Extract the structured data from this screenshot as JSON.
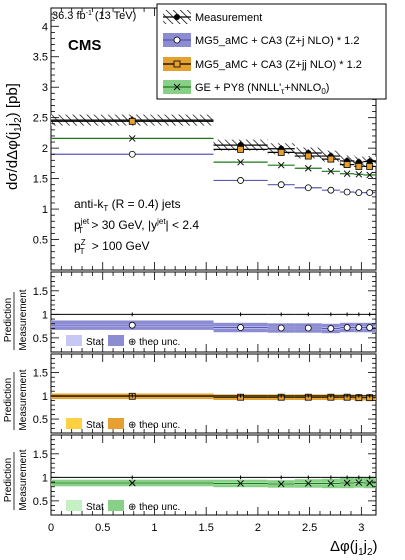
{
  "header": {
    "lumi": "36.3 fb",
    "lumi_sup": "-1",
    "energy": "(13 TeV)",
    "experiment": "CMS"
  },
  "top_panel": {
    "ylabel_main": "dσ/dΔφ(j",
    "ylabel_sub": "1",
    "ylabel_main2": "j",
    "ylabel_sub2": "2",
    "ylabel_unit": ") [pb]",
    "cut_line1_pre": "anti-k",
    "cut_line1_sub": "T",
    "cut_line1_post": " (R = 0.4) jets",
    "cut_line2": "p",
    "cut_line2_sup": "jet",
    "cut_line2_sub": "T",
    "cut_line2_post1": " > 30 GeV, |y",
    "cut_line2_sup2": "jet",
    "cut_line2_post2": "| < 2.4",
    "cut_line3": "p",
    "cut_line3_sup": "Z",
    "cut_line3_sub": "T",
    "cut_line3_post": " >  100 GeV"
  },
  "legend": {
    "measurement": "Measurement",
    "mg5_zj": "MG5_aMC + CA3 (Z+j NLO) * 1.2",
    "mg5_zjj": "MG5_aMC + CA3 (Z+jj NLO) * 1.2",
    "ge_py8": "GE + PY8 (NNLL'",
    "ge_py8_sub": "τ",
    "ge_py8_post": "+NNLO",
    "ge_py8_sub2": "0",
    "ge_py8_end": ")"
  },
  "ratio_panels": {
    "ylabel_top": "Prediction",
    "ylabel_bottom": "Measurement",
    "stat": "Stat",
    "theo": "⊕ theo unc."
  },
  "x_axis": {
    "label_main": "Δφ(j",
    "label_sub1": "1",
    "label_j": "j",
    "label_sub2": "2",
    "label_end": ")"
  },
  "colors": {
    "measurement": "#000000",
    "mg5_zj": "#5a5ab4",
    "mg5_zj_band": "#8c8cd2",
    "mg5_zj_stat": "#c8c8f5",
    "mg5_zjj": "#000000",
    "mg5_zjj_band": "#e6a030",
    "mg5_zjj_stat": "#ffd040",
    "ge_py8": "#1a7a1a",
    "ge_py8_band": "#88d088",
    "ge_py8_stat": "#c4f0c4"
  },
  "chart_data": {
    "type": "line",
    "x_edges": [
      0,
      1.5708,
      2.0944,
      2.3562,
      2.618,
      2.7925,
      2.9322,
      3.0194,
      3.1416
    ],
    "xlim": [
      0,
      3.1416
    ],
    "x_ticks": [
      "0",
      "0.5",
      "1",
      "1.5",
      "2",
      "2.5",
      "3"
    ],
    "top": {
      "ylim": [
        0,
        4.3
      ],
      "y_ticks": [
        "0.5",
        "1",
        "1.5",
        "2",
        "2.5",
        "3",
        "3.5",
        "4"
      ],
      "series": [
        {
          "name": "Measurement",
          "values": [
            2.46,
            2.05,
            1.99,
            1.92,
            1.87,
            1.79,
            1.77,
            1.78
          ],
          "unc": [
            0.09,
            0.09,
            0.09,
            0.09,
            0.09,
            0.09,
            0.09,
            0.09
          ]
        },
        {
          "name": "MG5_aMC + CA3 (Z+j NLO) * 1.2",
          "values": [
            1.9,
            1.47,
            1.4,
            1.35,
            1.31,
            1.28,
            1.27,
            1.27
          ]
        },
        {
          "name": "MG5_aMC + CA3 (Z+jj NLO) * 1.2",
          "values": [
            2.44,
            1.98,
            1.93,
            1.87,
            1.82,
            1.73,
            1.7,
            1.7
          ]
        },
        {
          "name": "GE + PY8 (NNLL'τ+NNLO0)",
          "values": [
            2.16,
            1.77,
            1.72,
            1.67,
            1.62,
            1.58,
            1.57,
            1.56
          ]
        }
      ]
    },
    "ratios": [
      {
        "series": "MG5_aMC + CA3 (Z+j NLO) * 1.2",
        "ylim": [
          0.2,
          1.9
        ],
        "y_ticks": [
          "0.5",
          "1",
          "1.5"
        ],
        "values": [
          0.77,
          0.72,
          0.71,
          0.71,
          0.7,
          0.72,
          0.72,
          0.72
        ],
        "stat": 0.025,
        "theo": [
          0.1,
          0.1,
          0.1,
          0.1,
          0.1,
          0.1,
          0.1,
          0.1
        ]
      },
      {
        "series": "MG5_aMC + CA3 (Z+jj NLO) * 1.2",
        "ylim": [
          0.2,
          1.9
        ],
        "y_ticks": [
          "0.5",
          "1",
          "1.5"
        ],
        "values": [
          0.99,
          0.97,
          0.97,
          0.97,
          0.97,
          0.97,
          0.96,
          0.96
        ],
        "stat": 0.02,
        "theo": [
          0.06,
          0.06,
          0.06,
          0.06,
          0.06,
          0.06,
          0.06,
          0.06
        ]
      },
      {
        "series": "GE + PY8 (NNLL'τ+NNLO0)",
        "ylim": [
          0.2,
          1.9
        ],
        "y_ticks": [
          "0.5",
          "1",
          "1.5"
        ],
        "values": [
          0.88,
          0.87,
          0.86,
          0.87,
          0.87,
          0.88,
          0.89,
          0.88
        ],
        "stat": 0.02,
        "theo": [
          0.07,
          0.08,
          0.08,
          0.09,
          0.1,
          0.11,
          0.11,
          0.11
        ]
      }
    ]
  }
}
